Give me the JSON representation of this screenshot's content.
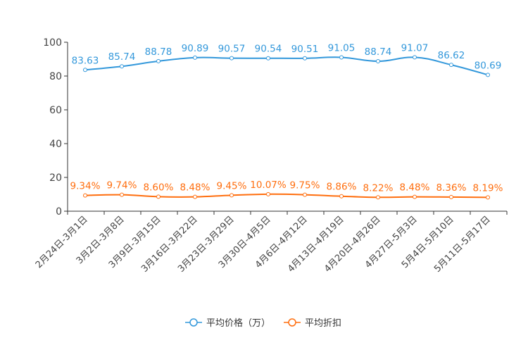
{
  "chart_data": {
    "type": "line",
    "categories": [
      "2月24日-3月1日",
      "3月2日-3月8日",
      "3月9日-3月15日",
      "3月16日-3月22日",
      "3月23日-3月29日",
      "3月30日-4月5日",
      "4月6日-4月12日",
      "4月13日-4月19日",
      "4月20日-4月26日",
      "4月27日-5月3日",
      "5月4日-5月10日",
      "5月11日-5月17日"
    ],
    "series": [
      {
        "name": "平均价格（万）",
        "color": "#3398DB",
        "values": [
          83.63,
          85.74,
          88.78,
          90.89,
          90.57,
          90.54,
          90.51,
          91.05,
          88.74,
          91.07,
          86.62,
          80.69
        ],
        "labels": [
          "83.63",
          "85.74",
          "88.78",
          "90.89",
          "90.57",
          "90.54",
          "90.51",
          "91.05",
          "88.74",
          "91.07",
          "86.62",
          "80.69"
        ]
      },
      {
        "name": "平均折扣",
        "color": "#FF6E0E",
        "values": [
          9.34,
          9.74,
          8.6,
          8.48,
          9.45,
          10.07,
          9.75,
          8.86,
          8.22,
          8.48,
          8.36,
          8.19
        ],
        "labels": [
          "9.34%",
          "9.74%",
          "8.60%",
          "8.48%",
          "9.45%",
          "10.07%",
          "9.75%",
          "8.86%",
          "8.22%",
          "8.48%",
          "8.36%",
          "8.19%"
        ]
      }
    ],
    "yticks": [
      "0",
      "20",
      "40",
      "60",
      "80",
      "100"
    ],
    "ylim": [
      0,
      100
    ],
    "legend": "bottom-center",
    "title": "",
    "xlabel": "",
    "ylabel": ""
  }
}
